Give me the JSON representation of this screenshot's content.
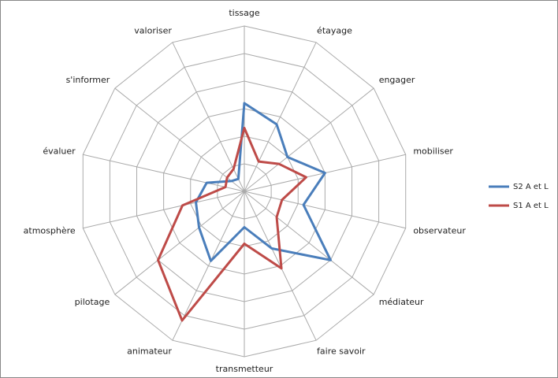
{
  "chart_data": {
    "type": "radar",
    "categories": [
      "tissage",
      "étayage",
      "engager",
      "mobiliser",
      "observateur",
      "médiateur",
      "faire savoir",
      "transmetteur",
      "animateur",
      "pilotage",
      "atmosphère",
      "évaluer",
      "s'informer",
      "valoriser"
    ],
    "series": [
      {
        "name": "S2 A et L",
        "color": "#4a7ebb",
        "values": [
          3.2,
          2.7,
          2.0,
          3.0,
          2.2,
          4.0,
          2.3,
          1.3,
          2.8,
          2.1,
          1.8,
          1.4,
          0.6,
          0.5
        ]
      },
      {
        "name": "S1 A et L",
        "color": "#be4b48",
        "values": [
          2.3,
          1.2,
          1.6,
          2.3,
          1.4,
          1.5,
          3.1,
          1.9,
          5.2,
          4.0,
          2.3,
          0.7,
          0.8,
          0.9
        ]
      }
    ],
    "ylim": [
      0,
      6
    ],
    "yticks": [
      1,
      2,
      3,
      4,
      5,
      6
    ],
    "grid": true,
    "legend": "right"
  }
}
